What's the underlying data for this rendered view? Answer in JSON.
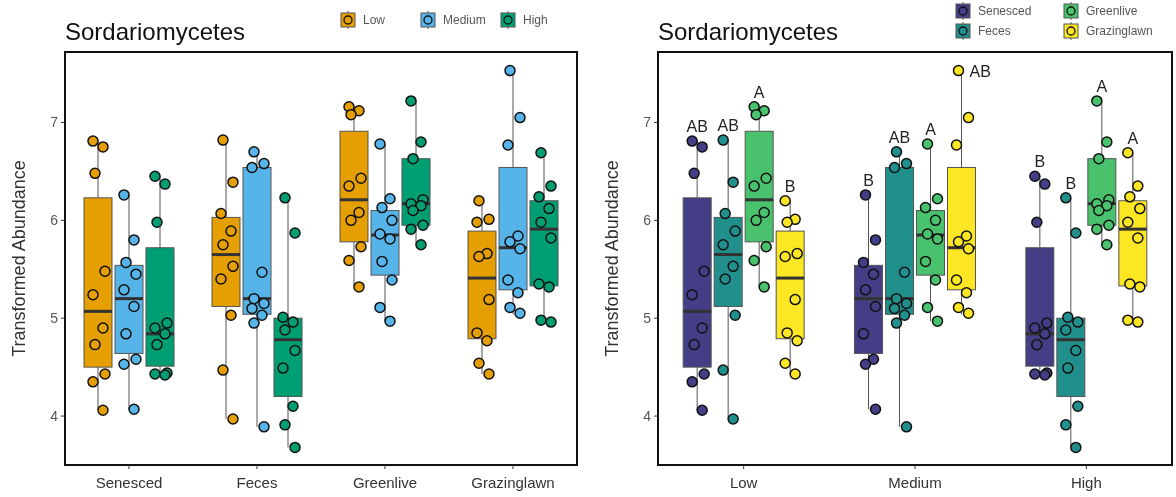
{
  "chart_data": [
    {
      "type": "box",
      "title": "Sordariomycetes",
      "ylabel": "Transformed Abundance",
      "categories": [
        "Senesced",
        "Feces",
        "Greenlive",
        "Grazinglawn"
      ],
      "ylim": [
        3.5,
        7.72
      ],
      "yticks": [
        4,
        5,
        6,
        7
      ],
      "legend": "top right",
      "series": [
        {
          "name": "Low",
          "color": "#e69f00",
          "boxes": [
            {
              "low": 4.06,
              "q1": 4.5,
              "median": 5.07,
              "q3": 6.23,
              "high": 6.81
            },
            {
              "low": 3.97,
              "q1": 5.12,
              "median": 5.65,
              "q3": 6.03,
              "high": 6.82
            },
            {
              "low": 5.32,
              "q1": 5.78,
              "median": 6.21,
              "q3": 6.91,
              "high": 7.16
            },
            {
              "low": 4.43,
              "q1": 4.79,
              "median": 5.41,
              "q3": 5.89,
              "high": 6.2
            }
          ]
        },
        {
          "name": "Medium",
          "color": "#56b4e9",
          "boxes": [
            {
              "low": 4.07,
              "q1": 4.64,
              "median": 5.2,
              "q3": 5.54,
              "high": 6.26
            },
            {
              "low": 3.89,
              "q1": 5.04,
              "median": 5.2,
              "q3": 6.54,
              "high": 6.7
            },
            {
              "low": 4.97,
              "q1": 5.44,
              "median": 5.85,
              "q3": 6.1,
              "high": 6.78
            },
            {
              "low": 5.04,
              "q1": 5.29,
              "median": 5.72,
              "q3": 6.54,
              "high": 7.53
            }
          ]
        },
        {
          "name": "High",
          "color": "#009e73",
          "boxes": [
            {
              "low": 4.42,
              "q1": 4.51,
              "median": 4.84,
              "q3": 5.72,
              "high": 6.45
            },
            {
              "low": 3.68,
              "q1": 4.2,
              "median": 4.78,
              "q3": 5.0,
              "high": 6.23
            },
            {
              "low": 5.75,
              "q1": 5.95,
              "median": 6.17,
              "q3": 6.63,
              "high": 7.22
            },
            {
              "low": 4.96,
              "q1": 5.33,
              "median": 5.91,
              "q3": 6.2,
              "high": 6.69
            }
          ]
        },
        {
          "type": "scatter",
          "color": "#e69f00",
          "x": [
            "Senesced",
            "Senesced",
            "Senesced",
            "Senesced",
            "Senesced",
            "Senesced",
            "Senesced",
            "Senesced",
            "Senesced",
            "Senesced",
            "Feces",
            "Feces",
            "Feces",
            "Feces",
            "Feces",
            "Feces",
            "Feces",
            "Feces",
            "Feces",
            "Feces",
            "Greenlive",
            "Greenlive",
            "Greenlive",
            "Greenlive",
            "Greenlive",
            "Greenlive",
            "Greenlive",
            "Greenlive",
            "Greenlive",
            "Greenlive",
            "Grazinglawn",
            "Grazinglawn",
            "Grazinglawn",
            "Grazinglawn",
            "Grazinglawn",
            "Grazinglawn",
            "Grazinglawn",
            "Grazinglawn",
            "Grazinglawn",
            "Grazinglawn"
          ],
          "values": [
            6.81,
            6.75,
            6.48,
            5.48,
            5.24,
            4.9,
            4.73,
            4.43,
            4.35,
            4.06,
            6.82,
            6.39,
            6.07,
            5.89,
            5.75,
            5.53,
            5.4,
            5.03,
            4.47,
            3.97,
            7.16,
            7.12,
            7.08,
            6.43,
            6.35,
            6.08,
            6.0,
            5.73,
            5.59,
            5.32,
            6.2,
            6.01,
            5.98,
            5.66,
            5.63,
            5.19,
            4.85,
            4.77,
            4.54,
            4.43
          ]
        },
        {
          "type": "scatter",
          "color": "#56b4e9",
          "x": [
            "Senesced",
            "Senesced",
            "Senesced",
            "Senesced",
            "Senesced",
            "Senesced",
            "Senesced",
            "Senesced",
            "Senesced",
            "Senesced",
            "Feces",
            "Feces",
            "Feces",
            "Feces",
            "Feces",
            "Feces",
            "Feces",
            "Feces",
            "Feces",
            "Feces",
            "Greenlive",
            "Greenlive",
            "Greenlive",
            "Greenlive",
            "Greenlive",
            "Greenlive",
            "Greenlive",
            "Greenlive",
            "Greenlive",
            "Greenlive",
            "Grazinglawn",
            "Grazinglawn",
            "Grazinglawn",
            "Grazinglawn",
            "Grazinglawn",
            "Grazinglawn",
            "Grazinglawn",
            "Grazinglawn",
            "Grazinglawn",
            "Grazinglawn"
          ],
          "values": [
            6.26,
            5.8,
            5.57,
            5.45,
            5.29,
            5.12,
            4.84,
            4.58,
            4.53,
            4.07,
            6.7,
            6.58,
            6.54,
            5.47,
            5.2,
            5.15,
            5.1,
            5.03,
            4.95,
            3.89,
            6.78,
            6.22,
            6.13,
            6.0,
            5.86,
            5.81,
            5.58,
            5.39,
            5.11,
            4.97,
            7.53,
            7.05,
            6.77,
            5.84,
            5.78,
            5.71,
            5.39,
            5.26,
            5.11,
            5.05
          ]
        },
        {
          "type": "scatter",
          "color": "#009e73",
          "x": [
            "Senesced",
            "Senesced",
            "Senesced",
            "Senesced",
            "Senesced",
            "Senesced",
            "Senesced",
            "Senesced",
            "Senesced",
            "Senesced",
            "Feces",
            "Feces",
            "Feces",
            "Feces",
            "Feces",
            "Feces",
            "Feces",
            "Feces",
            "Feces",
            "Feces",
            "Greenlive",
            "Greenlive",
            "Greenlive",
            "Greenlive",
            "Greenlive",
            "Greenlive",
            "Greenlive",
            "Greenlive",
            "Greenlive",
            "Greenlive",
            "Grazinglawn",
            "Grazinglawn",
            "Grazinglawn",
            "Grazinglawn",
            "Grazinglawn",
            "Grazinglawn",
            "Grazinglawn",
            "Grazinglawn",
            "Grazinglawn",
            "Grazinglawn"
          ],
          "values": [
            6.45,
            6.37,
            5.98,
            4.95,
            4.9,
            4.84,
            4.73,
            4.44,
            4.43,
            4.42,
            6.23,
            5.87,
            5.01,
            4.96,
            4.88,
            4.67,
            4.49,
            4.1,
            3.91,
            3.68,
            7.22,
            6.8,
            6.63,
            6.21,
            6.17,
            6.15,
            6.1,
            5.95,
            5.91,
            5.75,
            6.69,
            6.35,
            6.24,
            6.12,
            5.98,
            5.82,
            5.35,
            5.32,
            4.98,
            4.96
          ]
        }
      ]
    },
    {
      "type": "box",
      "title": "Sordariomycetes",
      "ylabel": "Transformed Abundance",
      "categories": [
        "Low",
        "Medium",
        "High"
      ],
      "ylim": [
        3.5,
        7.72
      ],
      "yticks": [
        4,
        5,
        6,
        7
      ],
      "legend": "top right",
      "series": [
        {
          "name": "Senesced",
          "color": "#433e85",
          "value_labels": [
            "AB",
            "B",
            "B"
          ],
          "boxes": [
            {
              "low": 4.06,
              "q1": 4.5,
              "median": 5.07,
              "q3": 6.23,
              "high": 6.81
            },
            {
              "low": 4.07,
              "q1": 4.64,
              "median": 5.2,
              "q3": 5.54,
              "high": 6.26
            },
            {
              "low": 4.42,
              "q1": 4.51,
              "median": 4.84,
              "q3": 5.72,
              "high": 6.45
            }
          ]
        },
        {
          "name": "Feces",
          "color": "#21908d",
          "value_labels": [
            "AB",
            "AB",
            "B"
          ],
          "boxes": [
            {
              "low": 3.97,
              "q1": 5.12,
              "median": 5.65,
              "q3": 6.03,
              "high": 6.82
            },
            {
              "low": 3.89,
              "q1": 5.04,
              "median": 5.2,
              "q3": 6.54,
              "high": 6.7
            },
            {
              "low": 3.68,
              "q1": 4.2,
              "median": 4.78,
              "q3": 5.0,
              "high": 6.23
            }
          ]
        },
        {
          "name": "Greenlive",
          "color": "#4ac16d",
          "value_labels": [
            "A",
            "A",
            "A"
          ],
          "boxes": [
            {
              "low": 5.32,
              "q1": 5.78,
              "median": 6.21,
              "q3": 6.91,
              "high": 7.16
            },
            {
              "low": 4.97,
              "q1": 5.44,
              "median": 5.85,
              "q3": 6.1,
              "high": 6.78
            },
            {
              "low": 5.75,
              "q1": 5.95,
              "median": 6.17,
              "q3": 6.63,
              "high": 7.22
            }
          ]
        },
        {
          "name": "Grazinglawn",
          "color": "#fde725",
          "value_labels": [
            "B",
            "AB",
            "A"
          ],
          "boxes": [
            {
              "low": 4.43,
              "q1": 4.79,
              "median": 5.41,
              "q3": 5.89,
              "high": 6.2
            },
            {
              "low": 5.04,
              "q1": 5.29,
              "median": 5.72,
              "q3": 6.54,
              "high": 7.53
            },
            {
              "low": 4.96,
              "q1": 5.33,
              "median": 5.91,
              "q3": 6.2,
              "high": 6.69
            }
          ]
        },
        {
          "type": "scatter",
          "color": "#433e85",
          "x": [
            "Low",
            "Low",
            "Low",
            "Low",
            "Low",
            "Low",
            "Low",
            "Low",
            "Low",
            "Low",
            "Medium",
            "Medium",
            "Medium",
            "Medium",
            "Medium",
            "Medium",
            "Medium",
            "Medium",
            "Medium",
            "Medium",
            "High",
            "High",
            "High",
            "High",
            "High",
            "High",
            "High",
            "High",
            "High",
            "High"
          ],
          "values": [
            6.81,
            6.75,
            6.48,
            5.48,
            5.24,
            4.9,
            4.73,
            4.43,
            4.35,
            4.06,
            6.26,
            5.8,
            5.57,
            5.45,
            5.29,
            5.12,
            4.84,
            4.58,
            4.53,
            4.07,
            6.45,
            6.37,
            5.98,
            4.95,
            4.9,
            4.84,
            4.73,
            4.44,
            4.43,
            4.42
          ]
        },
        {
          "type": "scatter",
          "color": "#21908d",
          "x": [
            "Low",
            "Low",
            "Low",
            "Low",
            "Low",
            "Low",
            "Low",
            "Low",
            "Low",
            "Low",
            "Medium",
            "Medium",
            "Medium",
            "Medium",
            "Medium",
            "Medium",
            "Medium",
            "Medium",
            "Medium",
            "Medium",
            "High",
            "High",
            "High",
            "High",
            "High",
            "High",
            "High",
            "High",
            "High",
            "High"
          ],
          "values": [
            6.82,
            6.39,
            6.07,
            5.89,
            5.75,
            5.53,
            5.4,
            5.03,
            4.47,
            3.97,
            6.7,
            6.58,
            6.54,
            5.47,
            5.2,
            5.15,
            5.1,
            5.03,
            4.95,
            3.89,
            6.23,
            5.87,
            5.01,
            4.96,
            4.88,
            4.67,
            4.49,
            4.1,
            3.91,
            3.68
          ]
        },
        {
          "type": "scatter",
          "color": "#4ac16d",
          "x": [
            "Low",
            "Low",
            "Low",
            "Low",
            "Low",
            "Low",
            "Low",
            "Low",
            "Low",
            "Low",
            "Medium",
            "Medium",
            "Medium",
            "Medium",
            "Medium",
            "Medium",
            "Medium",
            "Medium",
            "Medium",
            "Medium",
            "High",
            "High",
            "High",
            "High",
            "High",
            "High",
            "High",
            "High",
            "High",
            "High"
          ],
          "values": [
            7.16,
            7.12,
            7.08,
            6.43,
            6.35,
            6.08,
            6.0,
            5.73,
            5.59,
            5.32,
            6.78,
            6.22,
            6.13,
            6.0,
            5.86,
            5.81,
            5.58,
            5.39,
            5.11,
            4.97,
            7.22,
            6.8,
            6.63,
            6.21,
            6.17,
            6.15,
            6.1,
            5.95,
            5.91,
            5.75
          ]
        },
        {
          "type": "scatter",
          "color": "#fde725",
          "x": [
            "Low",
            "Low",
            "Low",
            "Low",
            "Low",
            "Low",
            "Low",
            "Low",
            "Low",
            "Low",
            "Medium",
            "Medium",
            "Medium",
            "Medium",
            "Medium",
            "Medium",
            "Medium",
            "Medium",
            "Medium",
            "Medium",
            "High",
            "High",
            "High",
            "High",
            "High",
            "High",
            "High",
            "High",
            "High",
            "High"
          ],
          "values": [
            6.2,
            6.01,
            5.98,
            5.66,
            5.63,
            5.19,
            4.85,
            4.77,
            4.54,
            4.43,
            7.53,
            7.05,
            6.77,
            5.84,
            5.78,
            5.71,
            5.39,
            5.26,
            5.11,
            5.05,
            6.69,
            6.35,
            6.24,
            6.12,
            5.98,
            5.82,
            5.35,
            5.32,
            4.98,
            4.96
          ]
        }
      ]
    }
  ]
}
